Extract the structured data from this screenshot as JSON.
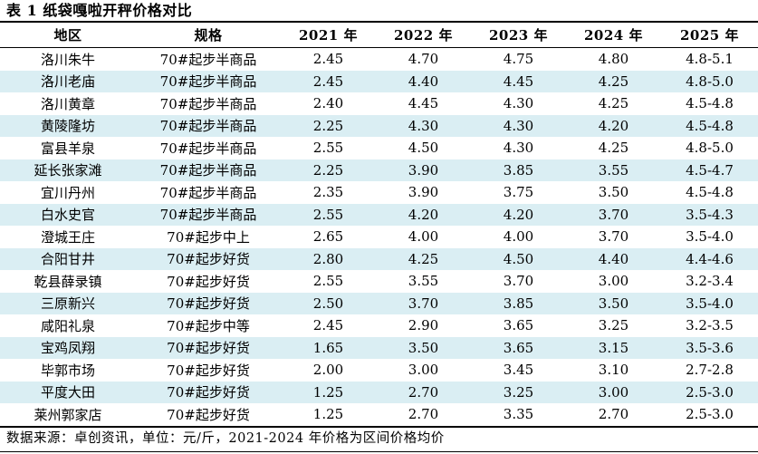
{
  "chart_data": {
    "type": "table",
    "title": "表 1 纸袋嘎啦开秤价格对比",
    "columns": [
      "地区",
      "规格",
      "2021 年",
      "2022 年",
      "2023 年",
      "2024 年",
      "2025 年"
    ],
    "rows": [
      [
        "洛川朱牛",
        "70#起步半商品",
        "2.45",
        "4.70",
        "4.75",
        "4.80",
        "4.8-5.1"
      ],
      [
        "洛川老庙",
        "70#起步半商品",
        "2.45",
        "4.40",
        "4.45",
        "4.25",
        "4.8-5.0"
      ],
      [
        "洛川黄章",
        "70#起步半商品",
        "2.40",
        "4.45",
        "4.30",
        "4.25",
        "4.5-4.8"
      ],
      [
        "黄陵隆坊",
        "70#起步半商品",
        "2.25",
        "4.30",
        "4.30",
        "4.20",
        "4.5-4.8"
      ],
      [
        "富县羊泉",
        "70#起步半商品",
        "2.55",
        "4.50",
        "4.30",
        "4.25",
        "4.8-5.0"
      ],
      [
        "延长张家滩",
        "70#起步半商品",
        "2.25",
        "3.90",
        "3.85",
        "3.55",
        "4.5-4.7"
      ],
      [
        "宜川丹州",
        "70#起步半商品",
        "2.35",
        "3.90",
        "3.75",
        "3.50",
        "4.5-4.8"
      ],
      [
        "白水史官",
        "70#起步半商品",
        "2.55",
        "4.20",
        "4.20",
        "3.70",
        "3.5-4.3"
      ],
      [
        "澄城王庄",
        "70#起步中上",
        "2.65",
        "4.00",
        "4.00",
        "3.70",
        "3.5-4.0"
      ],
      [
        "合阳甘井",
        "70#起步好货",
        "2.80",
        "4.25",
        "4.50",
        "4.40",
        "4.4-4.6"
      ],
      [
        "乾县薛录镇",
        "70#起步好货",
        "2.55",
        "3.55",
        "3.70",
        "3.00",
        "3.2-3.4"
      ],
      [
        "三原新兴",
        "70#起步好货",
        "2.50",
        "3.70",
        "3.85",
        "3.50",
        "3.5-4.0"
      ],
      [
        "咸阳礼泉",
        "70#起步中等",
        "2.45",
        "2.90",
        "3.65",
        "3.25",
        "3.2-3.5"
      ],
      [
        "宝鸡凤翔",
        "70#起步好货",
        "1.65",
        "3.50",
        "3.65",
        "3.15",
        "3.5-3.6"
      ],
      [
        "毕郭市场",
        "70#起步好货",
        "2.00",
        "3.00",
        "3.45",
        "3.10",
        "2.7-2.8"
      ],
      [
        "平度大田",
        "70#起步好货",
        "1.25",
        "2.70",
        "3.25",
        "3.00",
        "2.5-3.0"
      ],
      [
        "莱州郭家店",
        "70#起步好货",
        "1.25",
        "2.70",
        "3.35",
        "2.70",
        "2.5-3.0"
      ]
    ],
    "note": "数据来源：卓创资讯，单位：元/斤，2021-2024 年价格为区间价格均价",
    "layout": {
      "stripe_color": "#daeef3",
      "text_color": "#000000",
      "border_color": "#000000",
      "stripe_pattern": "even rows shaded, starting from second data row"
    }
  }
}
